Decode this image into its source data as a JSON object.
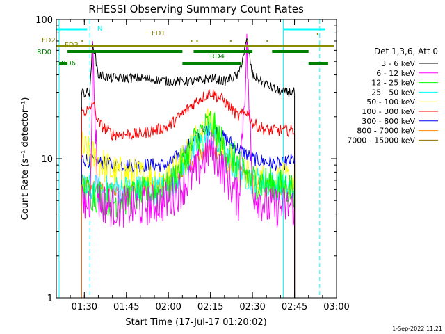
{
  "chart_data": {
    "type": "line",
    "title": "RHESSI Observing Summary Count Rates",
    "xlabel": "Start Time (17-Jul-17 01:20:02)",
    "ylabel": "Count Rate (s⁻¹ detector⁻¹)",
    "yscale": "log",
    "ylim": [
      1,
      100
    ],
    "xlim": [
      "01:20",
      "03:00"
    ],
    "x_ticks": [
      "01:30",
      "01:45",
      "02:00",
      "02:15",
      "02:30",
      "02:45",
      "03:00"
    ],
    "y_ticks": [
      "1",
      "10",
      "100"
    ],
    "legend_title": "Det 1,3,6, Att 0",
    "legend_position": "right",
    "series": [
      {
        "name": "3 - 6 keV",
        "color": "#000000",
        "x": [
          "01:29",
          "01:32",
          "01:33",
          "01:35",
          "01:40",
          "01:50",
          "02:00",
          "02:10",
          "02:15",
          "02:20",
          "02:25",
          "02:28",
          "02:30",
          "02:35",
          "02:40",
          "02:45"
        ],
        "values": [
          30,
          30,
          70,
          40,
          38,
          38,
          36,
          36,
          38,
          36,
          40,
          70,
          40,
          34,
          30,
          30
        ]
      },
      {
        "name": "6 - 12 keV",
        "color": "#ff00ff",
        "x": [
          "01:29",
          "01:32",
          "01:33",
          "01:35",
          "01:40",
          "01:50",
          "02:00",
          "02:10",
          "02:15",
          "02:20",
          "02:25",
          "02:28",
          "02:30",
          "02:35",
          "02:40",
          "02:45"
        ],
        "values": [
          4.5,
          5,
          55,
          5,
          4.5,
          4.5,
          5,
          8,
          12,
          8,
          5,
          60,
          6,
          4.5,
          4.5,
          4.5
        ]
      },
      {
        "name": "12 - 25 keV",
        "color": "#00ff00",
        "x": [
          "01:29",
          "01:40",
          "02:00",
          "02:10",
          "02:15",
          "02:20",
          "02:30",
          "02:45"
        ],
        "values": [
          6,
          5,
          6,
          14,
          18,
          12,
          7,
          6
        ]
      },
      {
        "name": "25 - 50 keV",
        "color": "#00ffff",
        "x": [
          "01:29",
          "01:40",
          "02:00",
          "02:10",
          "02:15",
          "02:20",
          "02:30",
          "02:45"
        ],
        "values": [
          6,
          6,
          6,
          12,
          15,
          10,
          7,
          6
        ]
      },
      {
        "name": "50 - 100 keV",
        "color": "#ffff00",
        "x": [
          "01:29",
          "01:40",
          "02:00",
          "02:10",
          "02:15",
          "02:20",
          "02:30",
          "02:45"
        ],
        "values": [
          12,
          8,
          7,
          14,
          20,
          10,
          7,
          7
        ]
      },
      {
        "name": "100 - 300 keV",
        "color": "#ff0000",
        "x": [
          "01:29",
          "01:32",
          "01:33",
          "01:35",
          "01:40",
          "01:50",
          "02:00",
          "02:10",
          "02:15",
          "02:20",
          "02:25",
          "02:28",
          "02:30",
          "02:35",
          "02:40",
          "02:45"
        ],
        "values": [
          22,
          22,
          26,
          18,
          15,
          15,
          17,
          26,
          30,
          26,
          20,
          22,
          18,
          16,
          16,
          16
        ]
      },
      {
        "name": "300 - 800 keV",
        "color": "#0000ff",
        "x": [
          "01:29",
          "01:40",
          "01:50",
          "02:00",
          "02:10",
          "02:15",
          "02:20",
          "02:30",
          "02:40",
          "02:45"
        ],
        "values": [
          10,
          9,
          9,
          9,
          14,
          17,
          14,
          10,
          9,
          10
        ]
      },
      {
        "name": "800 - 7000 keV",
        "color": "#ff8c00",
        "x": [
          "01:29",
          "01:40",
          "01:50",
          "02:00",
          "02:10",
          "02:15",
          "02:20",
          "02:30",
          "02:40",
          "02:45"
        ],
        "values": [
          6.5,
          6,
          6,
          6.5,
          10,
          12,
          10,
          7,
          6,
          6
        ]
      },
      {
        "name": "7000 - 15000 keV",
        "color": "#8b6b00",
        "x": [],
        "values": []
      }
    ],
    "flags": [
      {
        "name": "N",
        "color": "#00ffff"
      },
      {
        "name": "FD1",
        "color": "#8b8b00"
      },
      {
        "name": "FD2",
        "color": "#8b8b00"
      },
      {
        "name": "FD3",
        "color": "#8b8b00"
      },
      {
        "name": "RD0",
        "color": "#008000"
      },
      {
        "name": "RD4",
        "color": "#008000"
      },
      {
        "name": "RD6",
        "color": "#008000"
      }
    ],
    "footer_date": "1-Sep-2022 11:21"
  }
}
